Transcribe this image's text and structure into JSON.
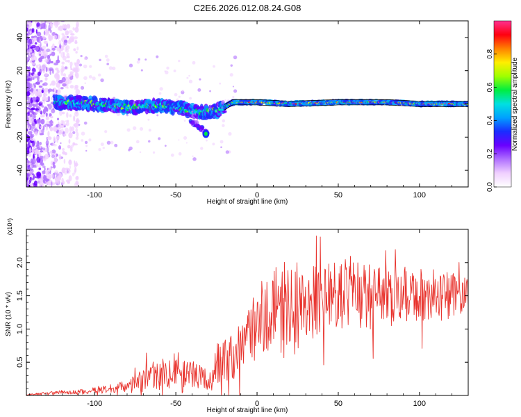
{
  "title": "C2E6.2026.012.08.24.G08",
  "colors": {
    "snr_line": "#e8322c",
    "axis": "#000000",
    "colormap": [
      "#ffffff",
      "#f0d0ff",
      "#b070ff",
      "#6a00ff",
      "#1a2cff",
      "#00a0ff",
      "#00e0e0",
      "#00ee40",
      "#a0ff00",
      "#ffee00",
      "#ff8000",
      "#ff0010",
      "#ff3090"
    ]
  },
  "chart_data": [
    {
      "type": "heatmap",
      "title": "C2E6.2026.012.08.24.G08",
      "xlabel": "Height of straight line (km)",
      "ylabel": "Frequency (Hz)",
      "xlim": [
        -142,
        130
      ],
      "ylim": [
        -50,
        50
      ],
      "xticks": [
        -100,
        -50,
        0,
        50,
        100
      ],
      "xtick_labels": [
        "-100",
        "-50",
        "0",
        "50",
        "100"
      ],
      "yticks": [
        -40,
        -20,
        0,
        20,
        40
      ],
      "ytick_labels": [
        "-40",
        "-20",
        "0",
        "20",
        "40"
      ],
      "ridge_frequency_hz": [
        [
          -142,
          2
        ],
        [
          -120,
          1
        ],
        [
          -100,
          0
        ],
        [
          -80,
          -2
        ],
        [
          -60,
          -1
        ],
        [
          -50,
          -2
        ],
        [
          -40,
          -4
        ],
        [
          -33,
          -5
        ],
        [
          -25,
          -4
        ],
        [
          -20,
          -2
        ],
        [
          -15,
          1
        ],
        [
          -10,
          1
        ],
        [
          0,
          1
        ],
        [
          20,
          0
        ],
        [
          50,
          1
        ],
        [
          80,
          1
        ],
        [
          100,
          0
        ],
        [
          130,
          0
        ]
      ],
      "features": [
        {
          "name": "doppler-offset-branch",
          "x_km": [
            -33,
            -30
          ],
          "freq_hz": -18
        }
      ],
      "colorbar": {
        "label": "Normalized spectral amplitude",
        "range": [
          0,
          1
        ],
        "ticks": [
          0.0,
          0.2,
          0.4,
          0.6,
          0.8
        ],
        "tick_labels": [
          "0.0",
          "0.2",
          "0.4",
          "0.6",
          "0.8"
        ]
      }
    },
    {
      "type": "line",
      "xlabel": "Height of straight line (km)",
      "ylabel": "SNR (10 * v/v)",
      "multiplier": "(x10⁴)",
      "xlim": [
        -142,
        130
      ],
      "ylim": [
        0,
        2.5
      ],
      "xticks": [
        -100,
        -50,
        0,
        50,
        100
      ],
      "xtick_labels": [
        "-100",
        "-50",
        "0",
        "50",
        "100"
      ],
      "yticks": [
        0.5,
        1.0,
        1.5,
        2.0
      ],
      "ytick_labels": [
        "0.5",
        "1.0",
        "1.5",
        "2.0"
      ],
      "series": [
        {
          "name": "SNR",
          "envelope": {
            "x": [
              -142,
              -130,
              -120,
              -110,
              -100,
              -90,
              -80,
              -75,
              -70,
              -65,
              -60,
              -55,
              -50,
              -45,
              -40,
              -35,
              -30,
              -25,
              -20,
              -15,
              -10,
              -5,
              0,
              5,
              10,
              15,
              20,
              25,
              30,
              40,
              50,
              60,
              70,
              80,
              90,
              100,
              110,
              120,
              130
            ],
            "mean": [
              0.01,
              0.03,
              0.05,
              0.05,
              0.08,
              0.1,
              0.14,
              0.18,
              0.25,
              0.3,
              0.28,
              0.35,
              0.38,
              0.33,
              0.3,
              0.28,
              0.28,
              0.42,
              0.55,
              0.62,
              0.72,
              0.9,
              1.05,
              1.2,
              1.3,
              1.3,
              1.28,
              1.35,
              1.4,
              1.5,
              1.55,
              1.55,
              1.5,
              1.45,
              1.5,
              1.5,
              1.5,
              1.5,
              1.48
            ],
            "amp": [
              0.01,
              0.02,
              0.03,
              0.04,
              0.05,
              0.07,
              0.1,
              0.15,
              0.22,
              0.25,
              0.22,
              0.3,
              0.32,
              0.3,
              0.22,
              0.18,
              0.2,
              0.35,
              0.35,
              0.38,
              0.4,
              0.45,
              0.55,
              0.65,
              0.7,
              0.75,
              0.72,
              0.72,
              0.65,
              0.55,
              0.55,
              0.55,
              0.5,
              0.45,
              0.45,
              0.42,
              0.4,
              0.35,
              0.28
            ]
          }
        }
      ]
    }
  ]
}
